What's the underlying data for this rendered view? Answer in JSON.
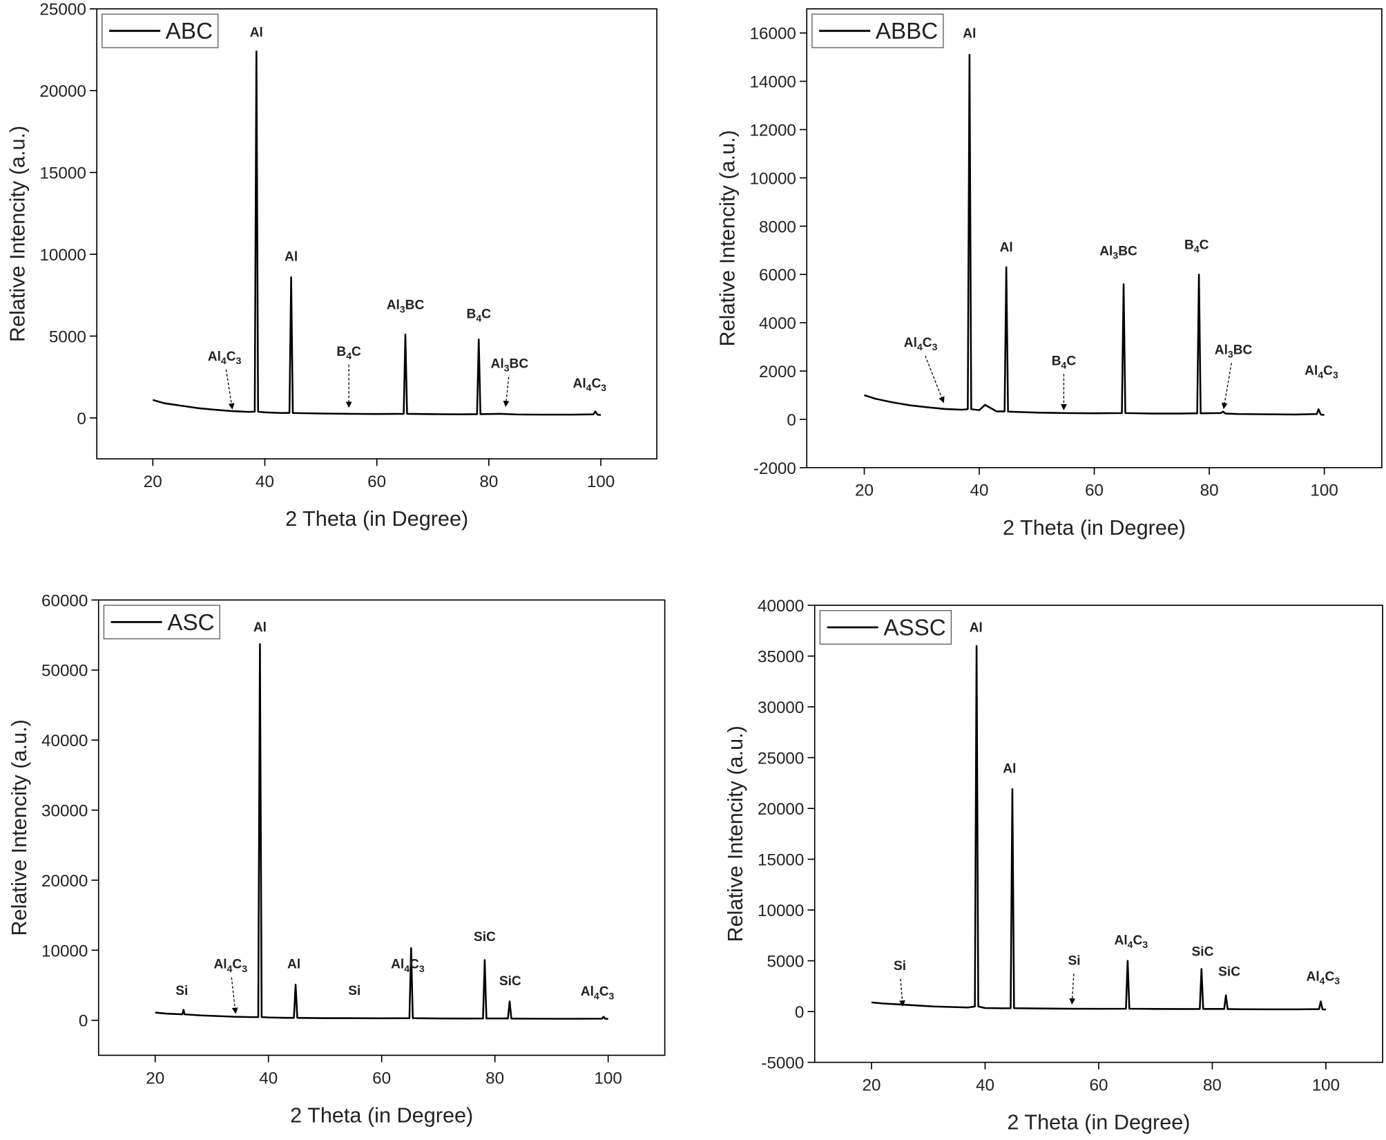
{
  "chart_data": [
    {
      "type": "line",
      "xlabel": "2 Theta (in Degree)",
      "ylabel": "Relative Intencity (a.u.)",
      "xlim": [
        10,
        110
      ],
      "ylim": [
        -2500,
        25000
      ],
      "xticks": [
        20,
        40,
        60,
        80,
        100
      ],
      "yticks": [
        0,
        5000,
        10000,
        15000,
        20000,
        25000
      ],
      "x": [
        20,
        22,
        25,
        28,
        31,
        34,
        37,
        38.2,
        38.5,
        38.8,
        40,
        43,
        44.4,
        44.7,
        45,
        50,
        55,
        60,
        64.8,
        65.1,
        65.4,
        70,
        75,
        77.9,
        78.2,
        78.5,
        82,
        85,
        90,
        95,
        98.7,
        99,
        99.4,
        100
      ],
      "series": [
        {
          "name": "ABC",
          "color": "#000000",
          "values": [
            1100,
            900,
            750,
            600,
            500,
            420,
            370,
            380,
            22400,
            380,
            340,
            300,
            310,
            8600,
            300,
            270,
            250,
            240,
            250,
            5100,
            250,
            230,
            220,
            230,
            4800,
            230,
            250,
            210,
            200,
            200,
            220,
            400,
            200,
            180
          ]
        }
      ],
      "annotations": [
        {
          "text": "Al",
          "x": 38.5,
          "y": 23300
        },
        {
          "text": "Al",
          "x": 44.7,
          "y": 9600
        },
        {
          "text": "Al4C3",
          "x": 32.8,
          "y": 3500,
          "arrow_x": 34.2,
          "arrow_y": 550
        },
        {
          "text": "B4C",
          "x": 55,
          "y": 3800,
          "arrow_x": 55,
          "arrow_y": 650
        },
        {
          "text": "Al3BC",
          "x": 65.1,
          "y": 6650
        },
        {
          "text": "B4C",
          "x": 78.2,
          "y": 6100
        },
        {
          "text": "Al3BC",
          "x": 83.7,
          "y": 3050,
          "arrow_x": 83,
          "arrow_y": 700
        },
        {
          "text": "Al4C3",
          "x": 98,
          "y": 1850
        }
      ]
    },
    {
      "type": "line",
      "xlabel": "2 Theta (in Degree)",
      "ylabel": "Relative Intencity (a.u.)",
      "xlim": [
        10,
        110
      ],
      "ylim": [
        -2000,
        17000
      ],
      "xticks": [
        20,
        40,
        60,
        80,
        100
      ],
      "yticks": [
        -2000,
        0,
        2000,
        4000,
        6000,
        8000,
        10000,
        12000,
        14000,
        16000
      ],
      "x": [
        20,
        22,
        25,
        28,
        31,
        34,
        37,
        38.0,
        38.3,
        38.6,
        40,
        41,
        43,
        44.4,
        44.7,
        45,
        50,
        55,
        60,
        64.8,
        65.1,
        65.4,
        70,
        75,
        77.9,
        78.2,
        78.5,
        82,
        82.4,
        82.8,
        85,
        90,
        95,
        98.7,
        99,
        99.4,
        100
      ],
      "series": [
        {
          "name": "ABBC",
          "color": "#000000",
          "values": [
            1000,
            850,
            700,
            580,
            500,
            430,
            400,
            420,
            15100,
            420,
            380,
            600,
            330,
            330,
            6300,
            320,
            280,
            260,
            250,
            260,
            5600,
            260,
            240,
            240,
            250,
            6000,
            250,
            260,
            320,
            240,
            220,
            210,
            200,
            220,
            420,
            200,
            180
          ]
        }
      ],
      "annotations": [
        {
          "text": "Al",
          "x": 38.3,
          "y": 15800
        },
        {
          "text": "Al",
          "x": 44.7,
          "y": 6950
        },
        {
          "text": "Al3BC",
          "x": 64.2,
          "y": 6800
        },
        {
          "text": "B4C",
          "x": 77.8,
          "y": 7050
        },
        {
          "text": "Al4C3",
          "x": 29.8,
          "y": 3000,
          "arrow_x": 33.8,
          "arrow_y": 700
        },
        {
          "text": "B4C",
          "x": 54.7,
          "y": 2250,
          "arrow_x": 54.7,
          "arrow_y": 400
        },
        {
          "text": "Al3BC",
          "x": 84.2,
          "y": 2700,
          "arrow_x": 82.5,
          "arrow_y": 450
        },
        {
          "text": "Al4C3",
          "x": 99.5,
          "y": 1850
        }
      ]
    },
    {
      "type": "line",
      "xlabel": "2 Theta (in Degree)",
      "ylabel": "Relative Intencity (a.u.)",
      "xlim": [
        10,
        110
      ],
      "ylim": [
        -5000,
        60000
      ],
      "xticks": [
        20,
        40,
        60,
        80,
        100
      ],
      "yticks": [
        0,
        10000,
        20000,
        30000,
        40000,
        50000,
        60000
      ],
      "x": [
        20,
        22,
        24.8,
        25,
        25.2,
        28,
        31,
        34,
        37,
        38.2,
        38.5,
        38.8,
        40,
        43,
        44.5,
        44.8,
        45.1,
        50,
        55,
        60,
        64.9,
        65.2,
        65.5,
        70,
        75,
        77.9,
        78.2,
        78.5,
        82.3,
        82.6,
        82.9,
        85,
        90,
        95,
        98.9,
        99.2,
        99.5,
        100
      ],
      "series": [
        {
          "name": "ASC",
          "color": "#000000",
          "values": [
            1100,
            950,
            850,
            1500,
            850,
            700,
            600,
            500,
            450,
            450,
            53700,
            450,
            400,
            350,
            350,
            5100,
            350,
            300,
            300,
            280,
            300,
            10300,
            300,
            260,
            250,
            260,
            8600,
            260,
            260,
            2700,
            250,
            230,
            220,
            220,
            230,
            500,
            220,
            200
          ]
        }
      ],
      "annotations": [
        {
          "text": "Al",
          "x": 38.5,
          "y": 55500
        },
        {
          "text": "Al",
          "x": 44.5,
          "y": 7400
        },
        {
          "text": "Al4C3",
          "x": 64.6,
          "y": 7400
        },
        {
          "text": "SiC",
          "x": 78.2,
          "y": 11300
        },
        {
          "text": "SiC",
          "x": 82.7,
          "y": 5000
        },
        {
          "text": "Al4C3",
          "x": 98.1,
          "y": 3500
        },
        {
          "text": "Si",
          "x": 24.7,
          "y": 3600
        },
        {
          "text": "Si",
          "x": 55.2,
          "y": 3600
        },
        {
          "text": "Al4C3",
          "x": 33.3,
          "y": 7400,
          "arrow_x": 34.2,
          "arrow_y": 1000
        }
      ]
    },
    {
      "type": "line",
      "xlabel": "2 Theta (in Degree)",
      "ylabel": "Relative Intencity (a.u.)",
      "xlim": [
        10,
        110
      ],
      "ylim": [
        -5000,
        40000
      ],
      "xticks": [
        20,
        40,
        60,
        80,
        100
      ],
      "yticks": [
        -5000,
        0,
        5000,
        10000,
        15000,
        20000,
        25000,
        30000,
        35000,
        40000
      ],
      "x": [
        20,
        22,
        25,
        28,
        31,
        34,
        37,
        38.2,
        38.5,
        38.8,
        40,
        43,
        44.5,
        44.8,
        45.1,
        50,
        55,
        60,
        64.8,
        65.1,
        65.4,
        70,
        75,
        77.8,
        78.1,
        78.4,
        82.1,
        82.4,
        82.7,
        85,
        90,
        95,
        98.8,
        99.1,
        99.4,
        100
      ],
      "series": [
        {
          "name": "ASSC",
          "color": "#000000",
          "values": [
            900,
            800,
            700,
            600,
            500,
            450,
            400,
            500,
            36000,
            500,
            350,
            320,
            330,
            21900,
            330,
            300,
            280,
            270,
            280,
            5000,
            280,
            260,
            250,
            260,
            4200,
            260,
            260,
            1600,
            250,
            230,
            220,
            220,
            240,
            1000,
            220,
            200
          ]
        }
      ],
      "annotations": [
        {
          "text": "Al",
          "x": 38.4,
          "y": 37400
        },
        {
          "text": "Al",
          "x": 44.3,
          "y": 23500
        },
        {
          "text": "Al4C3",
          "x": 65.7,
          "y": 6600
        },
        {
          "text": "SiC",
          "x": 78.3,
          "y": 5500
        },
        {
          "text": "SiC",
          "x": 83,
          "y": 3500
        },
        {
          "text": "Al4C3",
          "x": 99.5,
          "y": 3050
        },
        {
          "text": "Si",
          "x": 25,
          "y": 4100,
          "arrow_x": 25.5,
          "arrow_y": 550
        },
        {
          "text": "Si",
          "x": 55.7,
          "y": 4600,
          "arrow_x": 55.3,
          "arrow_y": 750
        }
      ]
    }
  ]
}
